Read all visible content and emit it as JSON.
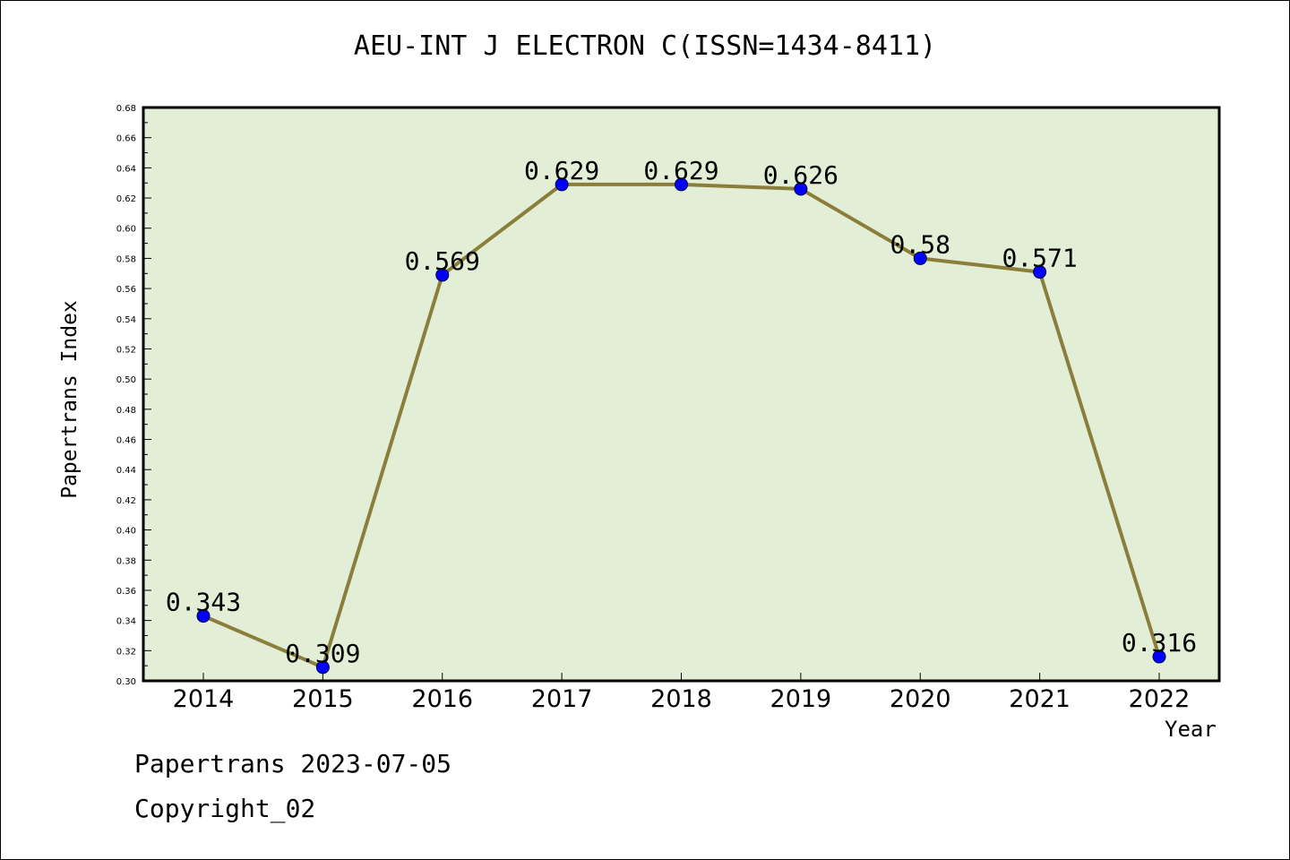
{
  "chart_data": {
    "type": "line",
    "title": "AEU-INT J ELECTRON C(ISSN=1434-8411)",
    "xlabel": "Year",
    "ylabel": "Papertrans Index",
    "x": [
      "2014",
      "2015",
      "2016",
      "2017",
      "2018",
      "2019",
      "2020",
      "2021",
      "2022"
    ],
    "values": [
      0.343,
      0.309,
      0.569,
      0.629,
      0.629,
      0.626,
      0.58,
      0.571,
      0.316
    ],
    "value_labels": [
      "0.343",
      "0.309",
      "0.569",
      "0.629",
      "0.629",
      "0.626",
      "0.58",
      "0.571",
      "0.316"
    ],
    "ylim": [
      0.3,
      0.68
    ],
    "yticks": [
      "0.30",
      "0.32",
      "0.34",
      "0.36",
      "0.38",
      "0.40",
      "0.42",
      "0.44",
      "0.46",
      "0.48",
      "0.50",
      "0.52",
      "0.54",
      "0.56",
      "0.58",
      "0.60",
      "0.62",
      "0.64",
      "0.66",
      "0.68"
    ],
    "grid": false,
    "legend": "none",
    "colors": {
      "plot_bg": "#e2efd6",
      "line": "#8b7d3a",
      "marker": "#0000ff"
    }
  },
  "footer": {
    "line1": "Papertrans 2023-07-05",
    "line2": "Copyright_02"
  }
}
